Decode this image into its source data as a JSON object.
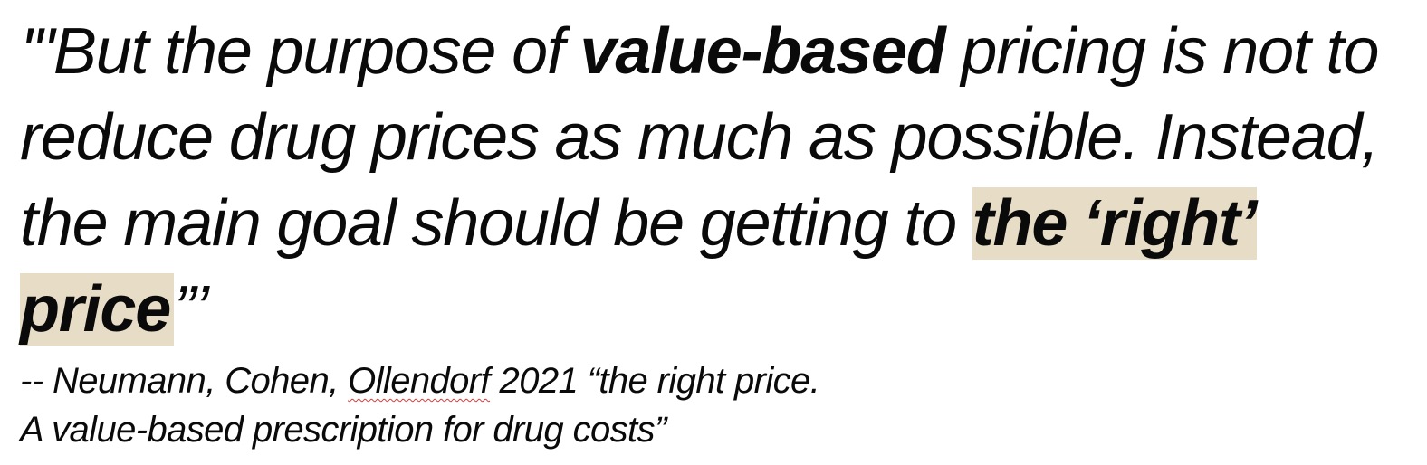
{
  "quote": {
    "open_marks": "'\"",
    "part1": "But the purpose of ",
    "emphasis1": "value-based",
    "part2": " pricing is not to reduce drug prices as much as possible. Instead, the main goal should be getting to ",
    "highlight": "the ‘right’ price",
    "close_marks": "”’"
  },
  "citation": {
    "prefix": "-- Neumann, Cohen, ",
    "flagged_word": "Ollendorf",
    "line1_rest": " 2021 “the right price.",
    "line2": "A value-based prescription for drug costs”"
  },
  "colors": {
    "highlight": "#e7dcc5",
    "text": "#0a0a0a",
    "spellcheck": "#d43b3b"
  }
}
